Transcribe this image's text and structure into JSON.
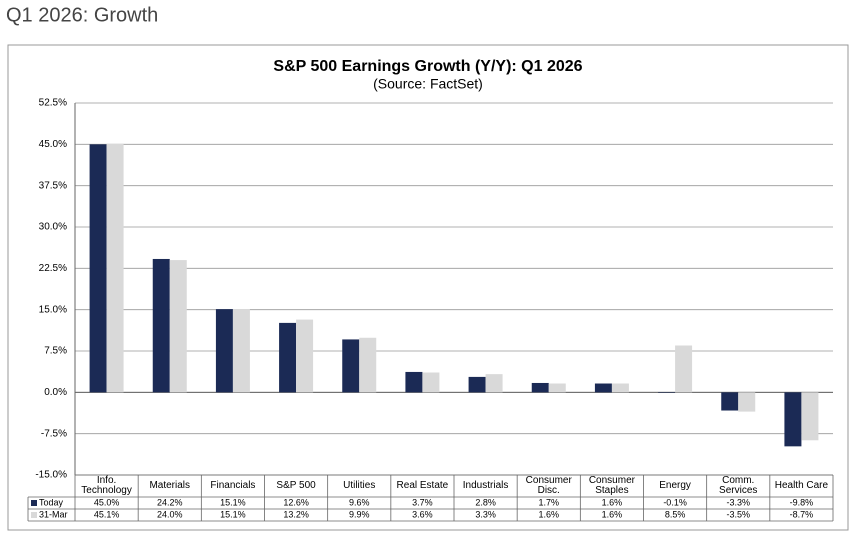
{
  "page_title": "Q1 2026: Growth",
  "chart_data": {
    "type": "bar",
    "title": "S&P 500 Earnings Growth (Y/Y): Q1 2026",
    "subtitle": "(Source: FactSet)",
    "categories": [
      "Info. Technology",
      "Materials",
      "Financials",
      "S&P 500",
      "Utilities",
      "Real Estate",
      "Industrials",
      "Consumer Disc.",
      "Consumer Staples",
      "Energy",
      "Comm. Services",
      "Health Care"
    ],
    "series": [
      {
        "name": "Today",
        "color": "#1b2a55",
        "values": [
          45.0,
          24.2,
          15.1,
          12.6,
          9.6,
          3.7,
          2.8,
          1.7,
          1.6,
          -0.1,
          -3.3,
          -9.8
        ],
        "value_labels": [
          "45.0%",
          "24.2%",
          "15.1%",
          "12.6%",
          "9.6%",
          "3.7%",
          "2.8%",
          "1.7%",
          "1.6%",
          "-0.1%",
          "-3.3%",
          "-9.8%"
        ]
      },
      {
        "name": "31-Mar",
        "color": "#d9d9d9",
        "values": [
          45.1,
          24.0,
          15.1,
          13.2,
          9.9,
          3.6,
          3.3,
          1.6,
          1.6,
          8.5,
          -3.5,
          -8.7
        ],
        "value_labels": [
          "45.1%",
          "24.0%",
          "15.1%",
          "13.2%",
          "9.9%",
          "3.6%",
          "3.3%",
          "1.6%",
          "1.6%",
          "8.5%",
          "-3.5%",
          "-8.7%"
        ]
      }
    ],
    "ylim": [
      -15,
      52.5
    ],
    "yticks": [
      {
        "value": -15,
        "label": "-15.0%"
      },
      {
        "value": -7.5,
        "label": "-7.5%"
      },
      {
        "value": 0,
        "label": "0.0%"
      },
      {
        "value": 7.5,
        "label": "7.5%"
      },
      {
        "value": 15,
        "label": "15.0%"
      },
      {
        "value": 22.5,
        "label": "22.5%"
      },
      {
        "value": 30,
        "label": "30.0%"
      },
      {
        "value": 37.5,
        "label": "37.5%"
      },
      {
        "value": 45,
        "label": "45.0%"
      },
      {
        "value": 52.5,
        "label": "52.5%"
      }
    ],
    "grid": true
  }
}
